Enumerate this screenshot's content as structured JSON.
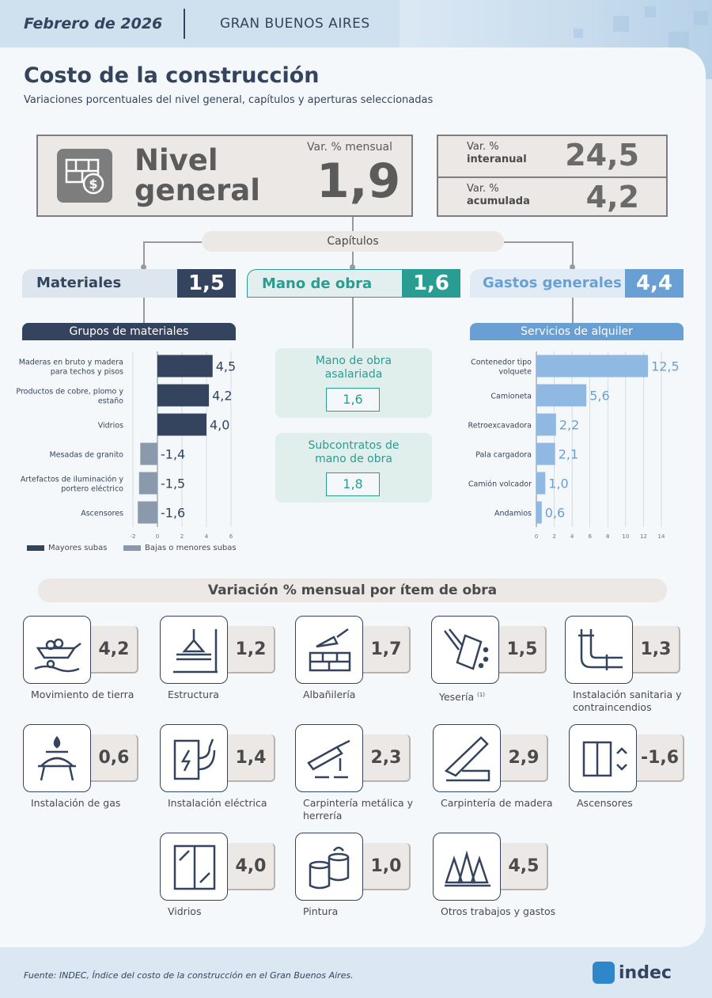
{
  "header": {
    "date": "Febrero de 2026",
    "region": "GRAN BUENOS AIRES"
  },
  "title": "Costo de la construcción",
  "subtitle": "Variaciones porcentuales del nivel general, capítulos y aperturas seleccionadas",
  "nivel_general": {
    "label_line1": "Nivel",
    "label_line2": "general",
    "var_label": "Var. % mensual",
    "value": "1,9",
    "icon": "bricks-money-icon"
  },
  "interanual": {
    "line1": "Var. %",
    "line2": "interanual",
    "value": "24,5"
  },
  "acumulada": {
    "line1": "Var. %",
    "line2": "acumulada",
    "value": "4,2"
  },
  "capitulos_label": "Capítulos",
  "chapters": [
    {
      "label": "Materiales",
      "value": "1,5",
      "label_bg": "#dde6ee",
      "label_color": "#34445e",
      "value_bg": "#34445e"
    },
    {
      "label": "Mano de obra",
      "value": "1,6",
      "label_bg": "#e2efee",
      "label_color": "#2a9d92",
      "value_bg": "#2a9d92"
    },
    {
      "label": "Gastos generales",
      "value": "4,4",
      "label_bg": "#e1ebf5",
      "label_color": "#6a9fd4",
      "value_bg": "#6a9fd4"
    }
  ],
  "mano_obra": {
    "items": [
      {
        "label": "Mano de obra asalariada",
        "value": "1,6"
      },
      {
        "label": "Subcontratos de mano de obra",
        "value": "1,8"
      }
    ]
  },
  "chart_data": [
    {
      "type": "bar",
      "orientation": "horizontal",
      "title": "Grupos de materiales",
      "categories": [
        "Maderas en bruto y madera para techos y pisos",
        "Productos de cobre, plomo y estaño",
        "Vidrios",
        "Mesadas de granito",
        "Artefactos de iluminación y portero eléctrico",
        "Ascensores"
      ],
      "values": [
        4.5,
        4.2,
        4.0,
        -1.4,
        -1.5,
        -1.6
      ],
      "value_labels": [
        "4,5",
        "4,2",
        "4,0",
        "-1,4",
        "-1,5",
        "-1,6"
      ],
      "xlim": [
        -2,
        6
      ],
      "xticks": [
        "-2",
        "0",
        "2",
        "4",
        "6"
      ],
      "colors": {
        "up": "#34445e",
        "down": "#8b99ad"
      },
      "legend": [
        {
          "name": "Mayores subas",
          "color": "#34445e"
        },
        {
          "name": "Bajas o menores subas",
          "color": "#8b99ad"
        }
      ],
      "legend_position": "bottom"
    },
    {
      "type": "bar",
      "orientation": "horizontal",
      "title": "Servicios de alquiler",
      "categories": [
        "Contenedor tipo volquete",
        "Camioneta",
        "Retroexcavadora",
        "Pala cargadora",
        "Camión volcador",
        "Andamios"
      ],
      "values": [
        12.5,
        5.6,
        2.2,
        2.1,
        1.0,
        0.6
      ],
      "value_labels": [
        "12,5",
        "5,6",
        "2,2",
        "2,1",
        "1,0",
        "0,6"
      ],
      "xlim": [
        0,
        14
      ],
      "xticks": [
        "0",
        "2",
        "4",
        "6",
        "8",
        "10",
        "12",
        "14"
      ],
      "colors": {
        "bar": "#8fb8e2"
      }
    }
  ],
  "items_title": "Variación % mensual por ítem de obra",
  "items": [
    {
      "label": "Movimiento de tierra",
      "value": "4,2",
      "icon": "wheelbarrow-icon"
    },
    {
      "label": "Estructura",
      "value": "1,2",
      "icon": "crane-beam-icon"
    },
    {
      "label": "Albañilería",
      "value": "1,7",
      "icon": "trowel-bricks-icon"
    },
    {
      "label": "Yesería",
      "sup": "(1)",
      "value": "1,5",
      "icon": "plaster-bag-icon"
    },
    {
      "label": "Instalación sanitaria y contraincendios",
      "value": "1,3",
      "icon": "pipes-icon"
    },
    {
      "label": "Instalación de gas",
      "value": "0,6",
      "icon": "gas-burner-icon"
    },
    {
      "label": "Instalación eléctrica",
      "value": "1,4",
      "icon": "electric-panel-icon"
    },
    {
      "label": "Carpintería metálica y herrería",
      "value": "2,3",
      "icon": "welding-torch-icon"
    },
    {
      "label": "Carpintería de madera",
      "value": "2,9",
      "icon": "saw-icon"
    },
    {
      "label": "Ascensores",
      "value": "-1,6",
      "icon": "elevator-icon"
    },
    {
      "label": "Vidrios",
      "value": "4,0",
      "icon": "window-icon"
    },
    {
      "label": "Pintura",
      "value": "1,0",
      "icon": "paint-cans-icon"
    },
    {
      "label": "Otros trabajos y gastos",
      "value": "4,5",
      "icon": "traffic-cones-icon"
    }
  ],
  "footer": "Fuente: INDEC, Índice del costo de la construcción en el Gran Buenos Aires.",
  "logo": "indec"
}
